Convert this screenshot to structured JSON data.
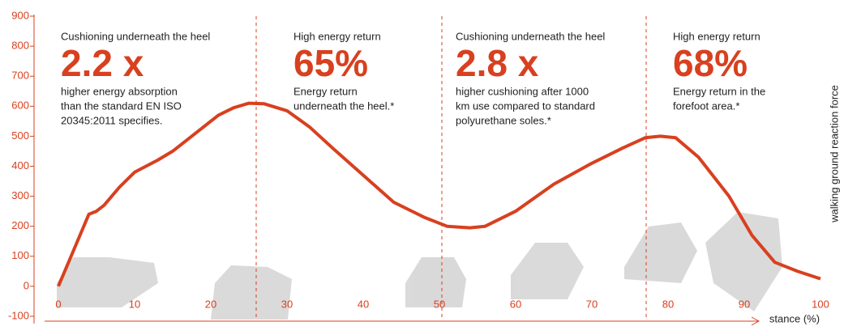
{
  "chart_data": {
    "type": "line",
    "x_label": "stance (%)",
    "y_label": "walking ground reaction force",
    "x": [
      0,
      2,
      4,
      5,
      6,
      8,
      10,
      13,
      15,
      18,
      21,
      23,
      25,
      27,
      30,
      33,
      36,
      40,
      44,
      48,
      51,
      54,
      56,
      60,
      65,
      70,
      74,
      77,
      79,
      81,
      84,
      88,
      91,
      94,
      97,
      100
    ],
    "values": [
      0,
      120,
      240,
      250,
      270,
      330,
      380,
      420,
      450,
      510,
      570,
      595,
      610,
      608,
      585,
      530,
      460,
      370,
      280,
      230,
      200,
      195,
      200,
      250,
      340,
      410,
      460,
      495,
      500,
      495,
      430,
      300,
      170,
      80,
      50,
      25
    ],
    "color": "#d8401f",
    "xlim": [
      0,
      100
    ],
    "xticks": [
      0,
      10,
      20,
      30,
      40,
      50,
      60,
      70,
      80,
      90,
      100
    ],
    "ylim": [
      -100,
      900
    ],
    "yticks": [
      -100,
      0,
      100,
      200,
      300,
      400,
      500,
      600,
      700,
      800,
      900
    ],
    "panels": [
      {
        "heading": "Cushioning underneath the heel",
        "figure": "2.2 x",
        "description": [
          "higher energy absorption",
          "than the standard EN ISO",
          "20345:2011 specifies."
        ]
      },
      {
        "heading": "High energy return",
        "figure": "65%",
        "description": [
          "Energy return",
          "underneath the heel.*"
        ]
      },
      {
        "heading": "Cushioning underneath the heel",
        "figure": "2.8 x",
        "description": [
          "higher cushioning after 1000",
          "km use compared to standard",
          "polyurethane soles.*"
        ]
      },
      {
        "heading": "High energy return",
        "figure": "68%",
        "description": [
          "Energy return in the",
          "forefoot area.*"
        ]
      }
    ]
  }
}
